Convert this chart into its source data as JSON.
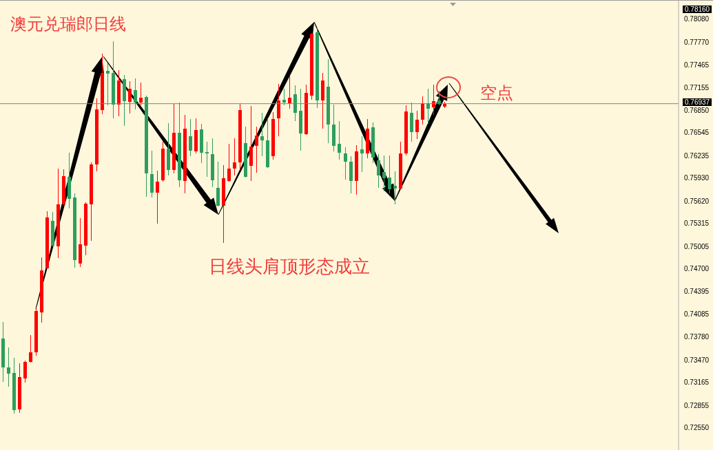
{
  "chart_data": {
    "type": "candlestick",
    "title": "澳元兑瑞郎日线",
    "annotations": [
      "日线头肩顶形态成立",
      "空点",
      "0.78160"
    ],
    "categories": [
      null,
      null,
      null,
      null,
      null,
      null,
      null,
      null,
      null,
      null,
      null,
      null,
      null,
      null,
      null,
      null,
      null,
      null,
      null,
      null,
      null,
      null,
      null,
      null,
      null,
      null,
      null,
      null,
      null,
      null,
      null,
      null,
      null,
      null,
      null,
      null,
      null,
      null,
      null,
      null,
      null,
      null,
      null,
      null,
      null,
      null,
      null,
      null,
      null,
      null,
      null,
      null,
      null,
      null,
      null,
      null,
      null,
      null,
      null,
      null,
      null,
      null,
      null,
      null,
      null,
      null,
      null,
      null,
      null,
      null,
      null,
      null,
      null,
      null,
      null,
      null,
      null,
      null,
      null,
      null,
      null,
      null,
      null,
      null,
      null,
      null,
      null,
      null,
      null,
      null,
      null,
      null,
      null,
      null,
      null,
      null,
      null,
      null,
      null,
      null,
      null,
      null,
      null,
      null,
      null,
      null,
      null,
      null,
      null,
      null,
      null,
      null,
      null,
      null,
      null,
      null,
      null,
      null,
      null,
      null,
      null,
      null,
      null
    ],
    "ohlc": [
      [
        0.7376,
        0.7398,
        0.7318,
        0.7337
      ],
      [
        0.7337,
        0.7363,
        0.7311,
        0.7328
      ],
      [
        0.7329,
        0.7349,
        0.7275,
        0.7279
      ],
      [
        0.728,
        0.7342,
        0.7276,
        0.7324
      ],
      [
        0.7322,
        0.7346,
        0.7317,
        0.7344
      ],
      [
        0.7344,
        0.738,
        0.7344,
        0.7357
      ],
      [
        0.7357,
        0.7417,
        0.7353,
        0.7413
      ],
      [
        0.7411,
        0.7485,
        0.7398,
        0.7468
      ],
      [
        0.7471,
        0.7548,
        0.7471,
        0.754
      ],
      [
        0.7535,
        0.7547,
        0.7501,
        0.7502
      ],
      [
        0.7501,
        0.7605,
        0.7485,
        0.7557
      ],
      [
        0.7557,
        0.7604,
        0.7557,
        0.7596
      ],
      [
        0.7595,
        0.7627,
        0.7552,
        0.7565
      ],
      [
        0.7567,
        0.7572,
        0.7472,
        0.7482
      ],
      [
        0.7477,
        0.7538,
        0.7473,
        0.7503
      ],
      [
        0.7502,
        0.756,
        0.7489,
        0.7558
      ],
      [
        0.7557,
        0.7614,
        0.7509,
        0.7611
      ],
      [
        0.7611,
        0.77,
        0.7603,
        0.7686
      ],
      [
        0.7685,
        0.7761,
        0.768,
        0.7735
      ],
      [
        0.7738,
        0.7748,
        0.7692,
        0.7734
      ],
      [
        0.7735,
        0.7778,
        0.7674,
        0.7692
      ],
      [
        0.7692,
        0.7739,
        0.7677,
        0.7725
      ],
      [
        0.7727,
        0.7732,
        0.7664,
        0.7697
      ],
      [
        0.7696,
        0.7724,
        0.7681,
        0.7714
      ],
      [
        0.7712,
        0.7727,
        0.7686,
        0.7695
      ],
      [
        0.7695,
        0.7722,
        0.7692,
        0.7702
      ],
      [
        0.7703,
        0.7704,
        0.7568,
        0.7599
      ],
      [
        0.7598,
        0.763,
        0.7567,
        0.7573
      ],
      [
        0.7573,
        0.7603,
        0.7532,
        0.7588
      ],
      [
        0.759,
        0.7642,
        0.7589,
        0.7633
      ],
      [
        0.7633,
        0.7667,
        0.7597,
        0.7604
      ],
      [
        0.7604,
        0.7693,
        0.76,
        0.7654
      ],
      [
        0.7654,
        0.7695,
        0.7581,
        0.759
      ],
      [
        0.7589,
        0.7678,
        0.7573,
        0.766
      ],
      [
        0.765,
        0.7672,
        0.7623,
        0.763
      ],
      [
        0.7629,
        0.7673,
        0.7627,
        0.7658
      ],
      [
        0.7659,
        0.7666,
        0.7614,
        0.7627
      ],
      [
        0.7628,
        0.7642,
        0.7595,
        0.7626
      ],
      [
        0.7625,
        0.7646,
        0.7581,
        0.759
      ],
      [
        0.758,
        0.7615,
        0.7555,
        0.7556
      ],
      [
        0.7556,
        0.761,
        0.7506,
        0.7593
      ],
      [
        0.7589,
        0.7639,
        0.7589,
        0.7606
      ],
      [
        0.7606,
        0.7646,
        0.7597,
        0.7614
      ],
      [
        0.7614,
        0.7694,
        0.7604,
        0.7685
      ],
      [
        0.764,
        0.7662,
        0.7594,
        0.7595
      ],
      [
        0.761,
        0.769,
        0.759,
        0.7636
      ],
      [
        0.7637,
        0.7662,
        0.7601,
        0.7651
      ],
      [
        0.765,
        0.7681,
        0.7623,
        0.7644
      ],
      [
        0.7644,
        0.7673,
        0.7607,
        0.7608
      ],
      [
        0.7623,
        0.7682,
        0.7618,
        0.7673
      ],
      [
        0.7674,
        0.772,
        0.765,
        0.7698
      ],
      [
        0.7699,
        0.7713,
        0.7692,
        0.7695
      ],
      [
        0.7694,
        0.773,
        0.7687,
        0.7702
      ],
      [
        0.7706,
        0.7718,
        0.7671,
        0.7681
      ],
      [
        0.7684,
        0.7713,
        0.7631,
        0.7653
      ],
      [
        0.7652,
        0.7719,
        0.7652,
        0.7708
      ],
      [
        0.7705,
        0.7789,
        0.7699,
        0.7788
      ],
      [
        0.779,
        0.7796,
        0.7688,
        0.7698
      ],
      [
        0.7698,
        0.7735,
        0.766,
        0.7725
      ],
      [
        0.7717,
        0.7753,
        0.7641,
        0.7665
      ],
      [
        0.7665,
        0.7692,
        0.763,
        0.7637
      ],
      [
        0.7639,
        0.767,
        0.7618,
        0.7627
      ],
      [
        0.7626,
        0.7634,
        0.7591,
        0.7615
      ],
      [
        0.7615,
        0.7622,
        0.7573,
        0.7589
      ],
      [
        0.7589,
        0.7637,
        0.7571,
        0.7629
      ],
      [
        0.7632,
        0.7649,
        0.7602,
        0.7626
      ],
      [
        0.7626,
        0.7672,
        0.762,
        0.766
      ],
      [
        0.7662,
        0.7668,
        0.7614,
        0.7621
      ],
      [
        0.7617,
        0.7625,
        0.758,
        0.7597
      ],
      [
        0.7601,
        0.7623,
        0.7576,
        0.7593
      ],
      [
        0.7594,
        0.7623,
        0.7573,
        0.7578
      ],
      [
        0.7583,
        0.7602,
        0.7558,
        0.7579
      ],
      [
        0.7579,
        0.7642,
        0.7578,
        0.7626
      ],
      [
        0.7626,
        0.7691,
        0.7624,
        0.7683
      ],
      [
        0.7681,
        0.7695,
        0.7643,
        0.7655
      ],
      [
        0.7655,
        0.7684,
        0.7646,
        0.7672
      ],
      [
        0.7672,
        0.7703,
        0.7666,
        0.7694
      ],
      [
        0.7694,
        0.7713,
        0.7667,
        0.7687
      ],
      [
        0.7689,
        0.7719,
        0.7679,
        0.7697
      ],
      [
        0.7698,
        0.7711,
        0.7692,
        0.7694
      ],
      [
        0.769,
        0.7696,
        0.7688,
        0.76937
      ],
      null,
      null,
      null,
      null,
      null,
      null,
      null,
      null,
      null,
      null,
      null,
      null,
      null,
      null,
      null,
      null,
      null,
      null,
      null,
      null,
      null,
      null,
      null,
      null,
      null,
      null,
      null,
      null,
      null,
      null,
      null,
      null,
      null,
      null,
      null,
      null,
      null,
      null,
      null,
      null,
      null,
      null
    ],
    "colors": [
      "#2e9e5e",
      "#2e9e5e",
      "#2e9e5e",
      "#ff0000",
      "#ff0000",
      "#ff0000",
      "#ff0000",
      "#ff0000",
      "#ff0000",
      "#2e9e5e",
      "#ff0000",
      "#ff0000",
      "#2e9e5e",
      "#2e9e5e",
      "#ff0000",
      "#ff0000",
      "#ff0000",
      "#ff0000",
      "#ff0000",
      "#2e9e5e",
      "#2e9e5e",
      "#ff0000",
      "#2e9e5e",
      "#ff0000",
      "#2e9e5e",
      "#ff0000",
      "#2e9e5e",
      "#2e9e5e",
      "#ff0000",
      "#ff0000",
      "#2e9e5e",
      "#ff0000",
      "#2e9e5e",
      "#ff0000",
      "#2e9e5e",
      "#ff0000",
      "#2e9e5e",
      "#2e9e5e",
      "#2e9e5e",
      "#2e9e5e",
      "#ff0000",
      "#ff0000",
      "#ff0000",
      "#ff0000",
      "#2e9e5e",
      "#ff0000",
      "#ff0000",
      "#2e9e5e",
      "#2e9e5e",
      "#ff0000",
      "#ff0000",
      "#2e9e5e",
      "#ff0000",
      "#2e9e5e",
      "#2e9e5e",
      "#ff0000",
      "#ff0000",
      "#2e9e5e",
      "#ff0000",
      "#2e9e5e",
      "#2e9e5e",
      "#2e9e5e",
      "#2e9e5e",
      "#2e9e5e",
      "#ff0000",
      "#2e9e5e",
      "#ff0000",
      "#2e9e5e",
      "#2e9e5e",
      "#2e9e5e",
      "#2e9e5e",
      "#2e9e5e",
      "#ff0000",
      "#ff0000",
      "#2e9e5e",
      "#ff0000",
      "#ff0000",
      "#2e9e5e",
      "#ff0000",
      "#2e9e5e",
      "#ff0000",
      null,
      null,
      null,
      null,
      null,
      null,
      null,
      null,
      null,
      null,
      null,
      null,
      null,
      null,
      null,
      null,
      null,
      null,
      null,
      null,
      null,
      null,
      null,
      null,
      null,
      null,
      null,
      null,
      null,
      null,
      null,
      null,
      null,
      null,
      null,
      null,
      null,
      null,
      null,
      null,
      null,
      null
    ],
    "ylim": [
      0.7225,
      0.7834
    ],
    "yticks": [
      {
        "value": 0.7808,
        "label": "0.78080"
      },
      {
        "value": 0.7777,
        "label": "0.77770"
      },
      0.77465,
      0.77155,
      {
        "value": 0.7685,
        "label": "0.76850"
      },
      0.76545,
      0.76235,
      {
        "value": 0.7593,
        "label": "0.75930"
      },
      {
        "value": 0.7562,
        "label": "0.75620"
      },
      0.75315,
      0.75005,
      {
        "value": 0.747,
        "label": "0.74700"
      },
      0.74395,
      0.74085,
      {
        "value": 0.7378,
        "label": "0.73780"
      },
      {
        "value": 0.7347,
        "label": "0.73470"
      },
      0.73165,
      0.72855,
      {
        "value": 0.7255,
        "label": "0.72550"
      }
    ],
    "tick_labels": "y",
    "ref_lines": [
      {
        "axis": "y",
        "value": 0.76937,
        "label": "0.76937",
        "color": "#808080"
      }
    ]
  }
}
